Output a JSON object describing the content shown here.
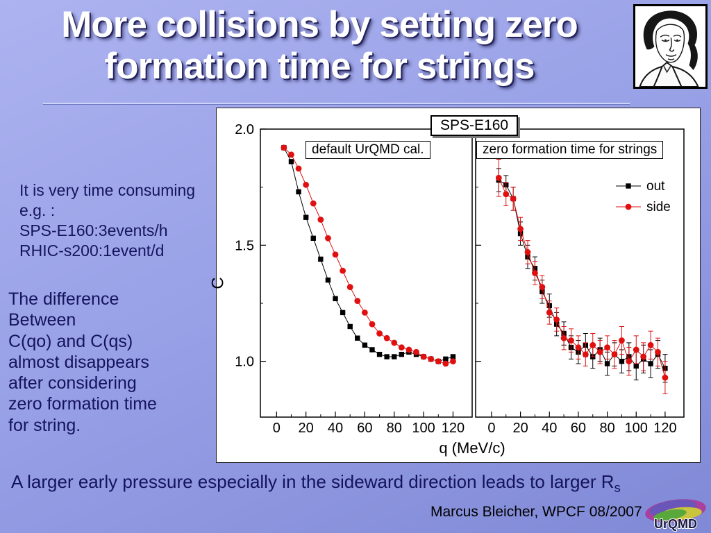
{
  "slide": {
    "title_line1": "More collisions by setting zero",
    "title_line2": "formation time for strings"
  },
  "notes": {
    "time_consuming": [
      "It is very time consuming",
      "e.g. :",
      "SPS-E160:3events/h",
      "RHIC-s200:1event/d"
    ],
    "difference": [
      "The difference",
      "Between",
      "C(qo) and C(qs)",
      "almost disappears",
      "after considering",
      "zero formation time",
      "for string."
    ]
  },
  "footer": {
    "statement_main": "A larger early pressure especially in the sideward direction leads to larger R",
    "statement_sub": "s",
    "credit": "Marcus Bleicher, WPCF 08/2007"
  },
  "logos": {
    "urqmd_text": "UrQMD"
  },
  "chart_data": {
    "type": "scatter",
    "title": "SPS-E160",
    "xlabel": "q (MeV/c)",
    "ylabel": "C",
    "xlim": [
      -11,
      133
    ],
    "ylim": [
      0.76,
      2.0
    ],
    "xticks": [
      0,
      20,
      40,
      60,
      80,
      100,
      120
    ],
    "xticks_minor": [
      10,
      30,
      50,
      70,
      90,
      110
    ],
    "yticks": [
      1.0,
      1.5,
      2.0
    ],
    "yticks_minor": [
      1.25,
      1.75
    ],
    "grid": false,
    "legend_position": "top-right",
    "legend": [
      {
        "label": "out",
        "marker": "square",
        "color": "#000000"
      },
      {
        "label": "side",
        "marker": "circle",
        "color": "#e01010"
      }
    ],
    "panels": [
      {
        "label": "default UrQMD cal.",
        "series": [
          {
            "name": "out",
            "marker": "square",
            "color": "#000000",
            "x": [
              5,
              10,
              15,
              20,
              25,
              30,
              35,
              40,
              45,
              50,
              55,
              60,
              65,
              70,
              75,
              80,
              85,
              90,
              95,
              100,
              105,
              110,
              115,
              120
            ],
            "y": [
              1.92,
              1.86,
              1.73,
              1.62,
              1.53,
              1.44,
              1.35,
              1.27,
              1.21,
              1.15,
              1.1,
              1.07,
              1.05,
              1.03,
              1.02,
              1.02,
              1.03,
              1.04,
              1.03,
              1.02,
              1.01,
              1.0,
              1.01,
              1.02
            ]
          },
          {
            "name": "side",
            "marker": "circle",
            "color": "#e01010",
            "x": [
              5,
              10,
              15,
              20,
              25,
              30,
              35,
              40,
              45,
              50,
              55,
              60,
              65,
              70,
              75,
              80,
              85,
              90,
              95,
              100,
              105,
              110,
              115,
              120
            ],
            "y": [
              1.92,
              1.89,
              1.83,
              1.76,
              1.68,
              1.61,
              1.53,
              1.46,
              1.39,
              1.32,
              1.26,
              1.21,
              1.16,
              1.12,
              1.1,
              1.08,
              1.06,
              1.05,
              1.04,
              1.02,
              1.01,
              1.0,
              0.99,
              1.0
            ]
          }
        ]
      },
      {
        "label": "zero formation time for strings",
        "series": [
          {
            "name": "out",
            "marker": "square",
            "color": "#000000",
            "x": [
              5,
              10,
              15,
              20,
              25,
              30,
              35,
              40,
              45,
              50,
              55,
              60,
              65,
              70,
              75,
              80,
              85,
              90,
              95,
              100,
              105,
              110,
              115,
              120
            ],
            "y": [
              1.78,
              1.76,
              1.7,
              1.55,
              1.45,
              1.4,
              1.3,
              1.24,
              1.16,
              1.12,
              1.06,
              1.04,
              1.07,
              1.02,
              1.05,
              0.99,
              1.03,
              1.0,
              1.02,
              0.98,
              1.01,
              0.99,
              1.03,
              0.97
            ],
            "yerr": [
              0.05,
              0.04,
              0.05,
              0.05,
              0.05,
              0.05,
              0.05,
              0.05,
              0.05,
              0.05,
              0.05,
              0.05,
              0.05,
              0.05,
              0.05,
              0.05,
              0.05,
              0.05,
              0.06,
              0.06,
              0.06,
              0.06,
              0.06,
              0.06
            ]
          },
          {
            "name": "side",
            "marker": "circle",
            "color": "#e01010",
            "x": [
              5,
              10,
              15,
              20,
              25,
              30,
              35,
              40,
              45,
              50,
              55,
              60,
              65,
              70,
              75,
              80,
              85,
              90,
              95,
              100,
              105,
              110,
              115,
              120
            ],
            "y": [
              1.79,
              1.72,
              1.7,
              1.57,
              1.47,
              1.38,
              1.32,
              1.21,
              1.18,
              1.1,
              1.09,
              1.06,
              1.03,
              1.07,
              1.04,
              1.06,
              1.03,
              1.09,
              1.0,
              1.05,
              1.02,
              1.07,
              1.04,
              0.93
            ],
            "yerr": [
              0.08,
              0.05,
              0.05,
              0.05,
              0.05,
              0.05,
              0.05,
              0.05,
              0.05,
              0.05,
              0.05,
              0.05,
              0.05,
              0.05,
              0.05,
              0.05,
              0.06,
              0.06,
              0.06,
              0.06,
              0.06,
              0.06,
              0.06,
              0.07
            ]
          }
        ]
      }
    ]
  }
}
